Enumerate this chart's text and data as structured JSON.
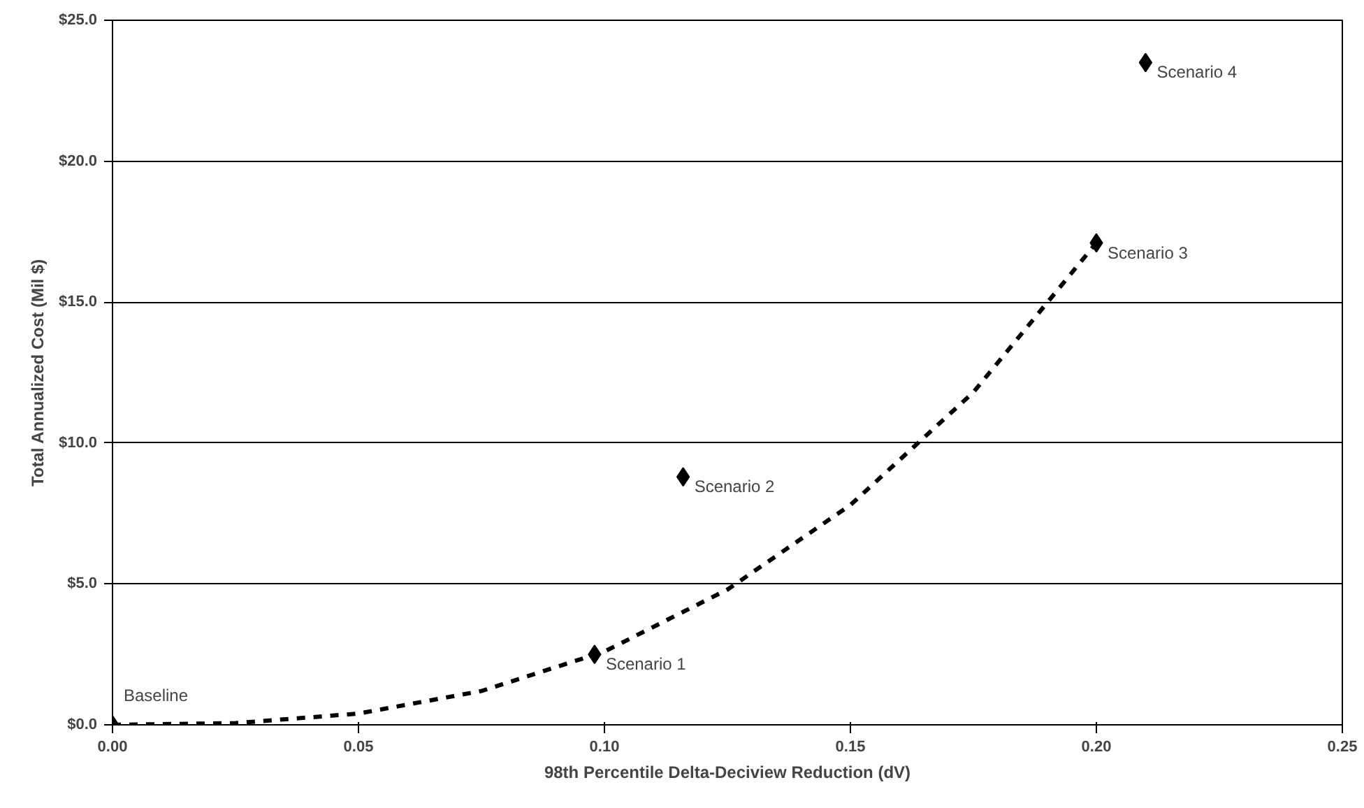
{
  "chart_data": {
    "type": "scatter",
    "xlabel": "98th Percentile Delta-Deciview Reduction (dV)",
    "ylabel": "Total Annualized Cost (Mil $)",
    "xlim": [
      0,
      0.25
    ],
    "ylim": [
      0,
      25
    ],
    "xticks": [
      {
        "value": 0,
        "label": "0.00"
      },
      {
        "value": 0.05,
        "label": "0.05"
      },
      {
        "value": 0.1,
        "label": "0.10"
      },
      {
        "value": 0.15,
        "label": "0.15"
      },
      {
        "value": 0.2,
        "label": "0.20"
      },
      {
        "value": 0.25,
        "label": "0.25"
      }
    ],
    "yticks": [
      {
        "value": 0,
        "label": "$0.0"
      },
      {
        "value": 5,
        "label": "$5.0"
      },
      {
        "value": 10,
        "label": "$10.0"
      },
      {
        "value": 15,
        "label": "$15.0"
      },
      {
        "value": 20,
        "label": "$20.0"
      },
      {
        "value": 25,
        "label": "$25.0"
      }
    ],
    "grid": "y",
    "marker": "diamond",
    "series": [
      {
        "type": "line",
        "line_style": "dashed",
        "marker": "none",
        "color": "#000000",
        "x": [
          0,
          0.025,
          0.05,
          0.075,
          0.1,
          0.125,
          0.15,
          0.175,
          0.2
        ],
        "values": [
          0,
          0.06,
          0.4,
          1.2,
          2.6,
          4.8,
          7.8,
          11.8,
          17.1
        ]
      },
      {
        "color": "#000000",
        "x": [
          0,
          0.098,
          0.116,
          0.2,
          0.21
        ],
        "values": [
          0,
          2.5,
          8.8,
          17.1,
          23.5
        ]
      }
    ],
    "annotations": [
      {
        "text": "Baseline",
        "x": 0,
        "y": 0
      },
      {
        "text": "Scenario 1",
        "x": 0.098,
        "y": 2.5
      },
      {
        "text": "Scenario 2",
        "x": 0.116,
        "y": 8.8
      },
      {
        "text": "Scenario 3",
        "x": 0.2,
        "y": 17.1
      },
      {
        "text": "Scenario 4",
        "x": 0.21,
        "y": 23.5
      }
    ]
  }
}
